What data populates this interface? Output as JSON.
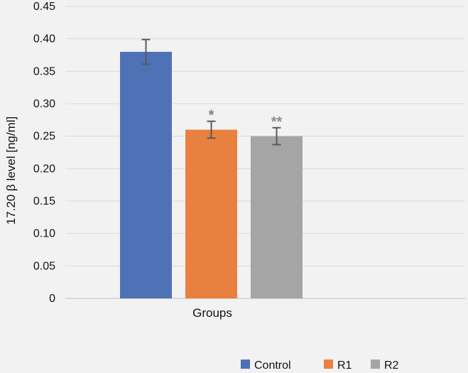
{
  "chart_data": {
    "type": "bar",
    "title": "",
    "xlabel": "Groups",
    "ylabel": "17.20 β level [ng/ml]",
    "ylim": [
      0,
      0.45
    ],
    "yticks": [
      "0",
      "0.05",
      "0.10",
      "0.15",
      "0.20",
      "0.25",
      "0.30",
      "0.35",
      "0.40",
      "0.45"
    ],
    "grid": true,
    "legend_position": "bottom-right",
    "series": [
      {
        "name": "Control",
        "value": 0.38,
        "error": 0.019,
        "color": "#4f71b6",
        "annotation": ""
      },
      {
        "name": "R1",
        "value": 0.26,
        "error": 0.013,
        "color": "#e8813f",
        "annotation": "*"
      },
      {
        "name": "R2",
        "value": 0.25,
        "error": 0.013,
        "color": "#a5a5a5",
        "annotation": "**"
      }
    ]
  }
}
